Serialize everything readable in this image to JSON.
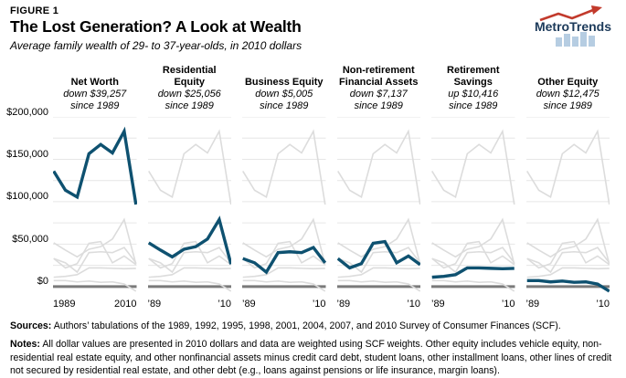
{
  "header": {
    "figure_label": "FIGURE 1",
    "title": "The Lost Generation? A Look at Wealth",
    "subtitle": "Average family wealth of 29- to 37-year-olds, in 2010 dollars",
    "logo_text": "MetroTrends"
  },
  "chart_data": {
    "type": "line",
    "title": "The Lost Generation? A Look at Wealth",
    "subtitle": "Average family wealth of 29- to 37-year-olds, in 2010 dollars",
    "x": [
      1989,
      1992,
      1995,
      1998,
      2001,
      2004,
      2007,
      2010
    ],
    "series": [
      {
        "name": "Net Worth",
        "delta": "down $39,257",
        "since": "since 1989",
        "values": [
          136000,
          113500,
          105500,
          156500,
          167500,
          157500,
          183000,
          96743
        ]
      },
      {
        "name": "Residential Equity",
        "delta": "down $25,056",
        "since": "since 1989",
        "values": [
          51500,
          43000,
          35000,
          44000,
          47000,
          56000,
          79000,
          26444
        ]
      },
      {
        "name": "Business Equity",
        "delta": "down $5,005",
        "since": "since 1989",
        "values": [
          33000,
          28000,
          17000,
          40000,
          41000,
          40000,
          46000,
          27995
        ]
      },
      {
        "name": "Non-retirement Financial Assets",
        "delta": "down $7,137",
        "since": "since 1989",
        "values": [
          33000,
          22000,
          27000,
          51000,
          53000,
          28000,
          36000,
          25863
        ]
      },
      {
        "name": "Retirement Savings",
        "delta": "up $10,416",
        "since": "since 1989",
        "values": [
          11000,
          12000,
          14000,
          22000,
          22000,
          21500,
          21000,
          21416
        ]
      },
      {
        "name": "Other Equity",
        "delta": "down $12,475",
        "since": "since 1989",
        "values": [
          7000,
          7000,
          5500,
          6500,
          5000,
          5500,
          3000,
          -5475
        ]
      }
    ],
    "ylim": [
      0,
      200000
    ],
    "gridline_step": 25000,
    "yticks": [
      "$0",
      "$50,000",
      "$100,000",
      "$150,000",
      "$200,000"
    ],
    "ytick_values": [
      0,
      50000,
      100000,
      150000,
      200000
    ],
    "panel_x_labels": {
      "first": [
        "1989",
        "2010"
      ],
      "rest": [
        "’89",
        "’10"
      ]
    },
    "legend_position": "none",
    "highlight_color": "#0e5170",
    "muted_color": "#dcdcdc",
    "grid_color": "#e6e6e6",
    "zero_axis_color": "#7a7a7a"
  },
  "footer": {
    "sources_label": "Sources:",
    "sources_text": " Authors’ tabulations of the 1989, 1992, 1995, 1998, 2001, 2004, 2007, and 2010 Survey of Consumer Finances (SCF).",
    "notes_label": "Notes:",
    "notes_text": " All dollar values are presented in 2010 dollars and data are weighted using SCF weights. Other equity includes vehicle equity, non-residential real estate equity, and other nonfinancial assets minus credit card debt, student loans, other installment loans, other lines of credit not secured by residential real estate, and other debt (e.g., loans against pensions or life insurance, margin loans)."
  }
}
